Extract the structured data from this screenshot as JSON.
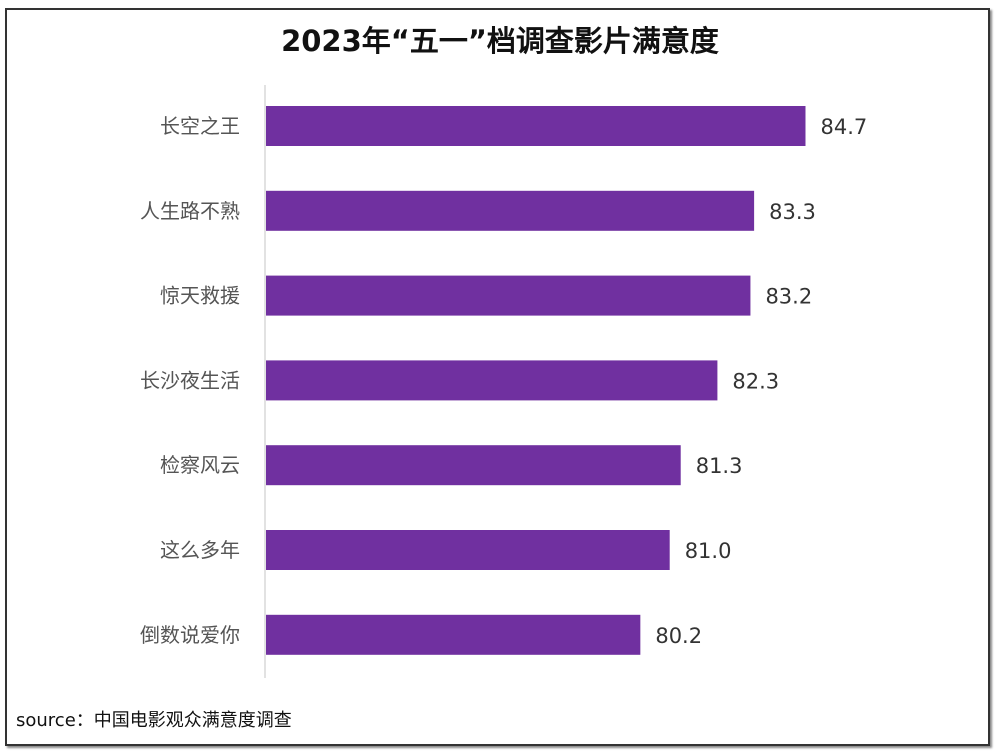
{
  "chart_data": {
    "type": "bar",
    "orientation": "horizontal",
    "title": "2023年“五一”档调查影片满意度",
    "categories": [
      "长空之王",
      "人生路不熟",
      "惊天救援",
      "长沙夜生活",
      "检察风云",
      "这么多年",
      "倒数说爱你"
    ],
    "values": [
      84.7,
      83.3,
      83.2,
      82.3,
      81.3,
      81.0,
      80.2
    ],
    "value_labels": [
      "84.7",
      "83.3",
      "83.2",
      "82.3",
      "81.3",
      "81.0",
      "80.2"
    ],
    "xlabel": "",
    "ylabel": "",
    "xlim": [
      70,
      90
    ],
    "grid": false,
    "bar_color": "#7030A0",
    "source": "source：中国电影观众满意度调查"
  }
}
